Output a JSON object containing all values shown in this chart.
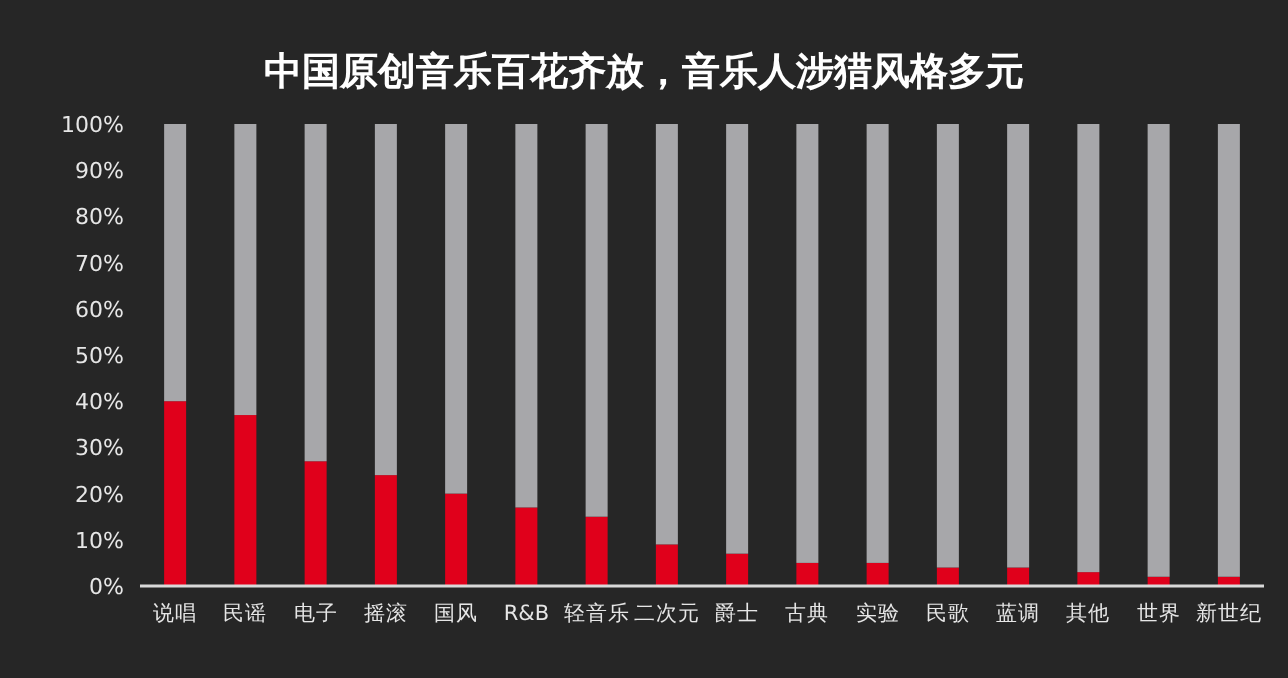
{
  "chart_data": {
    "type": "bar",
    "title": "中国原创音乐百花齐放，音乐人涉猎风格多元",
    "stacked": true,
    "categories": [
      "说唱",
      "民谣",
      "电子",
      "摇滚",
      "国风",
      "R&B",
      "轻音乐",
      "二次元",
      "爵士",
      "古典",
      "实验",
      "民歌",
      "蓝调",
      "其他",
      "世界",
      "新世纪"
    ],
    "series": [
      {
        "color": "#e0001b",
        "values": [
          40,
          37,
          27,
          24,
          20,
          17,
          15,
          9,
          7,
          5,
          5,
          4,
          4,
          3,
          2,
          2
        ]
      },
      {
        "color": "#a7a7aa",
        "values": [
          60,
          63,
          73,
          76,
          80,
          83,
          85,
          91,
          93,
          95,
          95,
          96,
          96,
          97,
          98,
          98
        ]
      }
    ],
    "ylim": [
      0,
      100
    ],
    "yticks": [
      {
        "value": 0,
        "label": "0%"
      },
      {
        "value": 10,
        "label": "10%"
      },
      {
        "value": 20,
        "label": "20%"
      },
      {
        "value": 30,
        "label": "30%"
      },
      {
        "value": 40,
        "label": "40%"
      },
      {
        "value": 50,
        "label": "50%"
      },
      {
        "value": 60,
        "label": "60%"
      },
      {
        "value": 70,
        "label": "70%"
      },
      {
        "value": 80,
        "label": "80%"
      },
      {
        "value": 90,
        "label": "90%"
      },
      {
        "value": 100,
        "label": "100%"
      }
    ],
    "grid": false
  }
}
